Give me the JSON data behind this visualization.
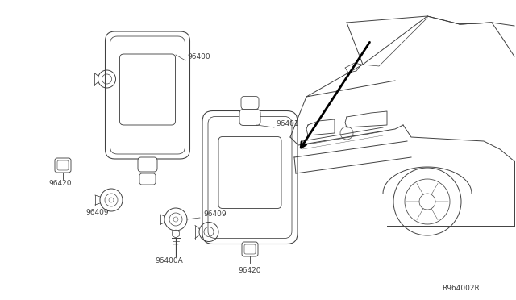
{
  "bg_color": "#ffffff",
  "line_color": "#404040",
  "fig_width": 6.4,
  "fig_height": 3.72,
  "dpi": 100,
  "font_size": 6.5,
  "ref_code": "R964002R"
}
